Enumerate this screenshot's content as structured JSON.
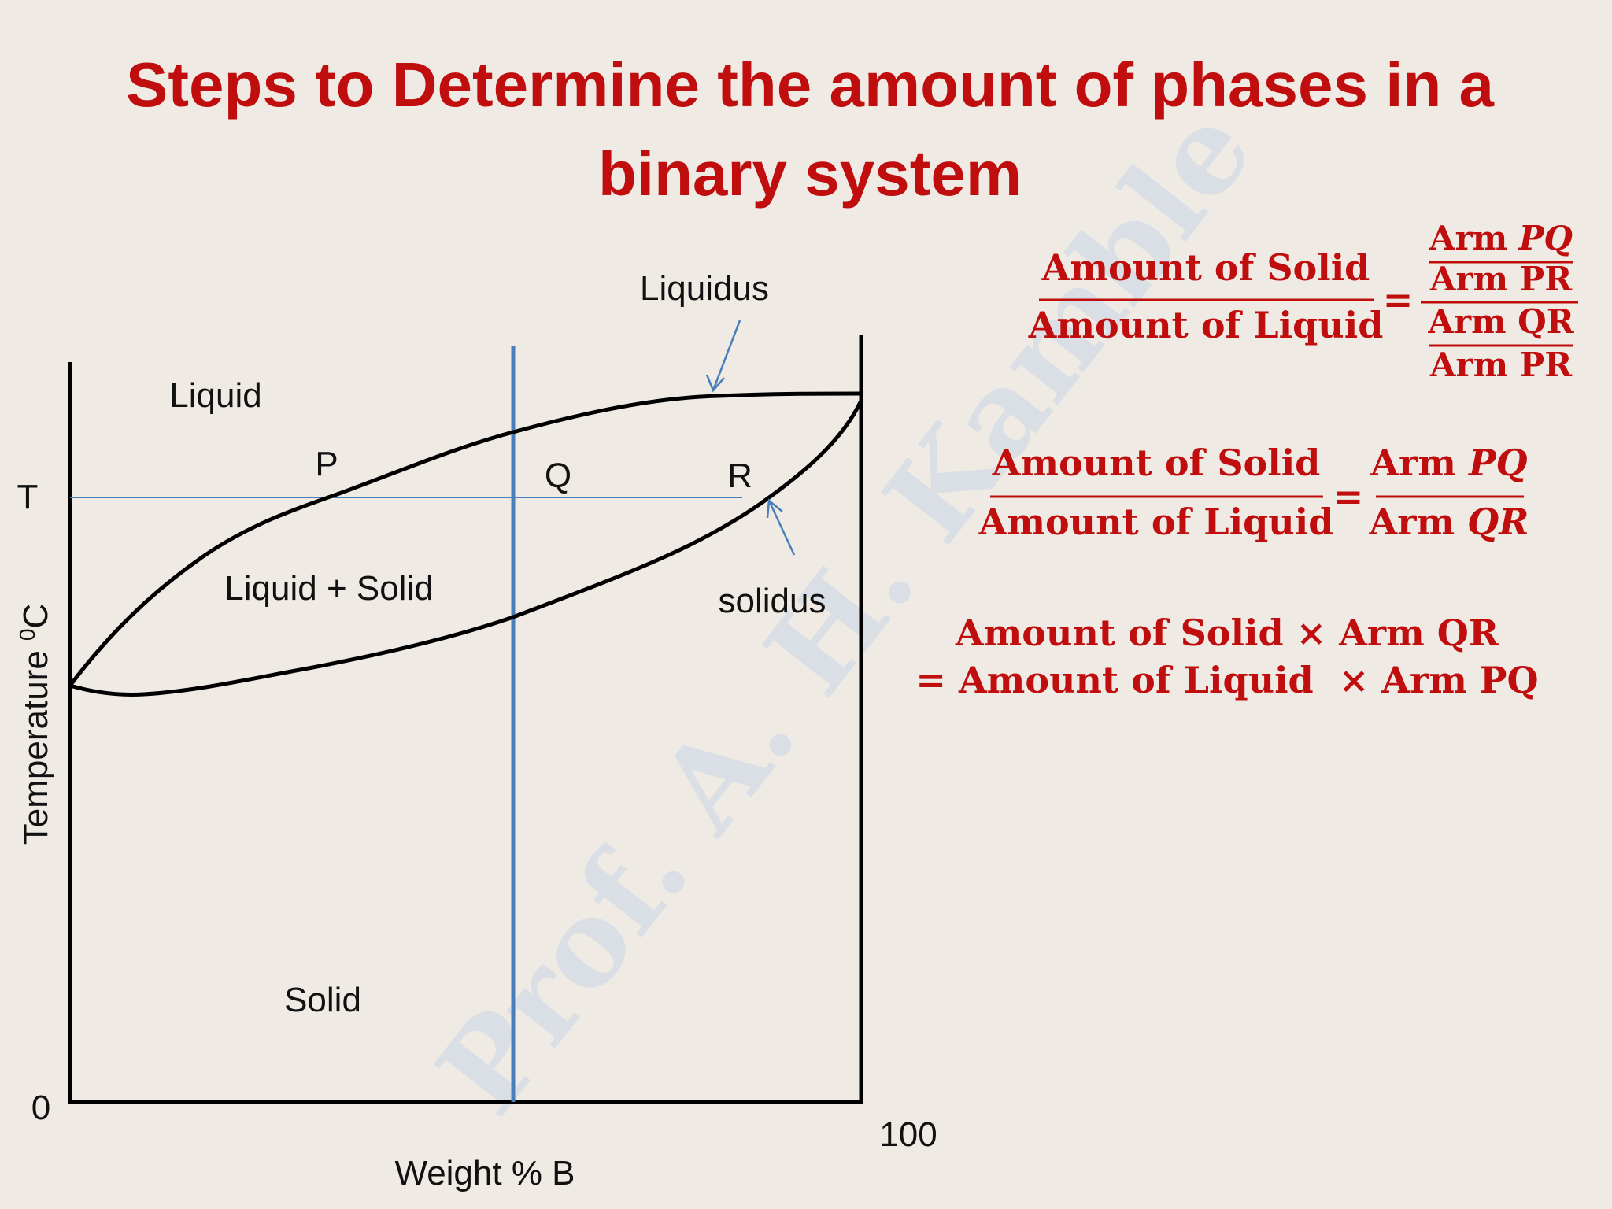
{
  "title": {
    "lines": [
      "Steps to Determine the amount of phases in a",
      "binary system"
    ]
  },
  "watermark": "Prof. A. H. Kamble",
  "diagram": {
    "regions": {
      "liquid": "Liquid",
      "two_phase": "Liquid + Solid",
      "solid": "Solid"
    },
    "curves": {
      "liquidus": "Liquidus",
      "solidus": "solidus"
    },
    "points": {
      "p": "P",
      "q": "Q",
      "r": "R"
    },
    "temperature_mark": "T",
    "y_axis_label": {
      "text": "Temperature",
      "superscript": "0",
      "unit": "C"
    },
    "x_axis_label": "Weight % B",
    "x_min": "0",
    "x_max": "100"
  },
  "formulas": [
    {
      "numerator": "Amount of Solid",
      "denominator": "Amount of Liquid",
      "equals": "=",
      "rhs": [
        {
          "arm": "Arm",
          "seg": "PQ"
        },
        {
          "arm": "Arm",
          "seg": "PR"
        },
        {
          "arm": "Arm",
          "seg": "QR"
        },
        {
          "arm": "Arm",
          "seg": "PR"
        }
      ]
    },
    {
      "numerator": "Amount of Solid",
      "denominator": "Amount of Liquid",
      "equals": "=",
      "rhs": [
        {
          "arm": "Arm",
          "seg": "PQ"
        },
        {
          "arm": "Arm",
          "seg": "QR"
        }
      ]
    },
    {
      "lines": [
        "Amount of Solid × Arm QR",
        "= Amount of Liquid  × Arm PQ"
      ]
    }
  ]
}
